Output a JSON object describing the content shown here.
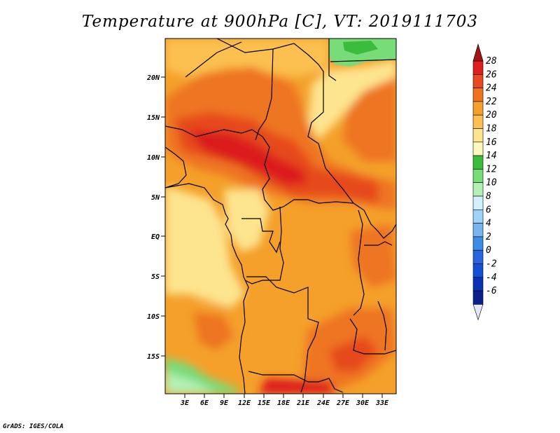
{
  "title": "Temperature at 900hPa [C], VT: 2019111703",
  "credit": "GrADS: IGES/COLA",
  "map": {
    "lat_ticks": [
      "20N",
      "15N",
      "10N",
      "5N",
      "EQ",
      "5S",
      "10S",
      "15S"
    ],
    "lon_ticks": [
      "3E",
      "6E",
      "9E",
      "12E",
      "15E",
      "18E",
      "21E",
      "24E",
      "27E",
      "30E",
      "33E"
    ]
  },
  "colorbar": {
    "labels": [
      "28",
      "26",
      "24",
      "22",
      "20",
      "18",
      "16",
      "14",
      "12",
      "10",
      "8",
      "6",
      "4",
      "2",
      "0",
      "-2",
      "-4",
      "-6"
    ],
    "colors": [
      "#dc1e1e",
      "#e64a1e",
      "#ee7420",
      "#f4a02a",
      "#fbc050",
      "#fde48e",
      "#fff9c0",
      "#3cbc3c",
      "#78dc78",
      "#b4f0b4",
      "#d2f0ff",
      "#a0d2fa",
      "#78b4f0",
      "#3c8ce6",
      "#2864dc",
      "#1450d2",
      "#0a32b4",
      "#0a1e8c",
      "#e6e6fa",
      "#a01414"
    ]
  }
}
